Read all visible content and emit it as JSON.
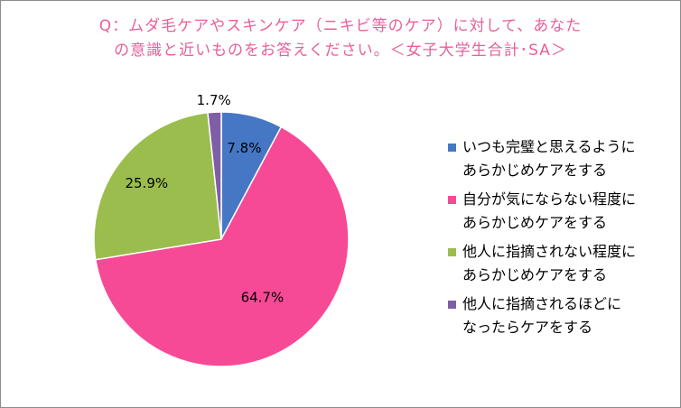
{
  "chart_data": {
    "type": "pie",
    "title_lines": [
      "Q：ムダ毛ケアやスキンケア（ニキビ等のケア）に対して、あなた",
      "の意識と近いものをお答えください。＜女子大学生合計･SA＞"
    ],
    "slices": [
      {
        "label": "いつも完璧と思えるように\nあらかじめケアをする",
        "value": 7.8,
        "display": "7.8%",
        "color": "#4677c4"
      },
      {
        "label": "自分が気にならない程度に\nあらかじめケアをする",
        "value": 64.7,
        "display": "64.7%",
        "color": "#f64a96"
      },
      {
        "label": "他人に指摘されない程度に\nあらかじめケアをする",
        "value": 25.9,
        "display": "25.9%",
        "color": "#9bbd4d"
      },
      {
        "label": "他人に指摘されるほどに\nなったらケアをする",
        "value": 1.7,
        "display": "1.7%",
        "color": "#7e5ea6"
      }
    ],
    "legend_position": "right"
  }
}
